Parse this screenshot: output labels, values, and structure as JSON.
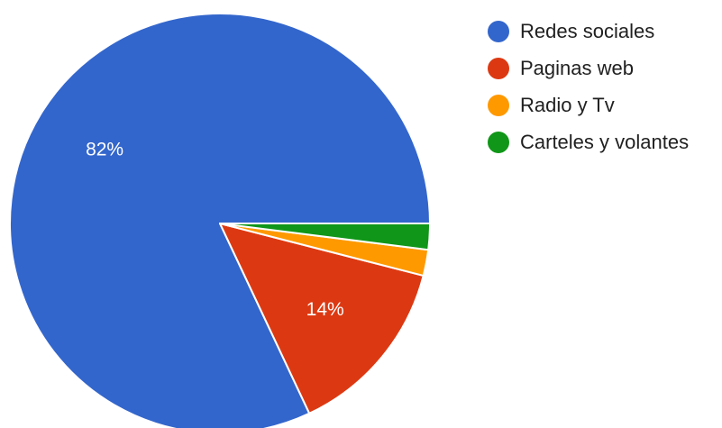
{
  "chart_data": {
    "type": "pie",
    "title": "",
    "legend_position": "right",
    "start_angle_deg": 0,
    "direction": "counterclockwise",
    "series": [
      {
        "name": "",
        "slices": [
          {
            "label": "Redes sociales",
            "value": 82,
            "color": "#3366cc",
            "value_label": "82%"
          },
          {
            "label": "Paginas web",
            "value": 14,
            "color": "#dc3912",
            "value_label": "14%"
          },
          {
            "label": "Radio y Tv",
            "value": 2,
            "color": "#ff9900",
            "value_label": ""
          },
          {
            "label": "Carteles y volantes",
            "value": 2,
            "color": "#109618",
            "value_label": ""
          }
        ]
      }
    ]
  }
}
